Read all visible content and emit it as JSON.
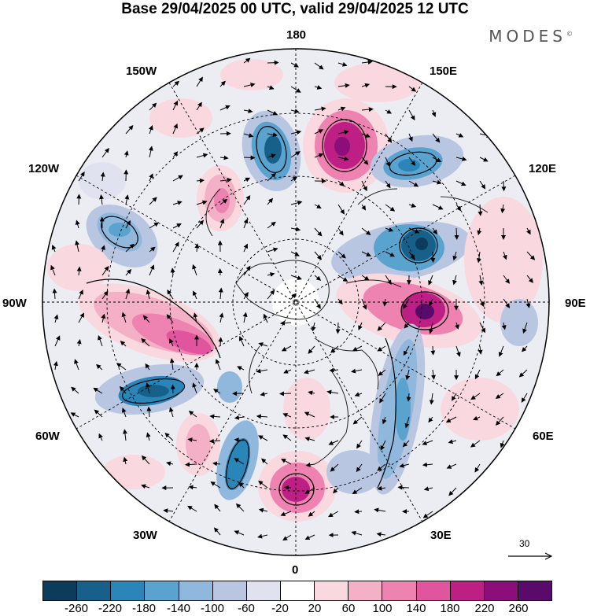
{
  "header": {
    "title": "Base 29/04/2025 00 UTC, valid 29/04/2025 12 UTC",
    "brand": "MODES"
  },
  "map": {
    "projection": "north-polar-stereographic",
    "longitude_labels": {
      "lon_180": "180",
      "lon_150e": "150E",
      "lon_120e": "120E",
      "lon_90e": "90E",
      "lon_60e": "60E",
      "lon_30e": "30E",
      "lon_0": "0",
      "lon_30w": "30W",
      "lon_60w": "60W",
      "lon_90w": "90W",
      "lon_120w": "120W",
      "lon_150w": "150W"
    },
    "reference_vector": {
      "label": "30"
    }
  },
  "colorbar": {
    "colors": [
      "#0d3b5c",
      "#16608a",
      "#2a85b8",
      "#5aa3cf",
      "#8fb8dc",
      "#b9c6e2",
      "#e0e2f0",
      "#ffffff",
      "#f9d8df",
      "#f4b0c6",
      "#ee82b0",
      "#e0559e",
      "#bd1f85",
      "#8c0e7a",
      "#5a0a6a"
    ],
    "labels": {
      "l_n260": "-260",
      "l_n220": "-220",
      "l_n180": "-180",
      "l_n140": "-140",
      "l_n100": "-100",
      "l_n60": "-60",
      "l_n20": "-20",
      "l_20": "20",
      "l_60": "60",
      "l_100": "100",
      "l_140": "140",
      "l_180": "180",
      "l_220": "220",
      "l_260": "260"
    }
  }
}
